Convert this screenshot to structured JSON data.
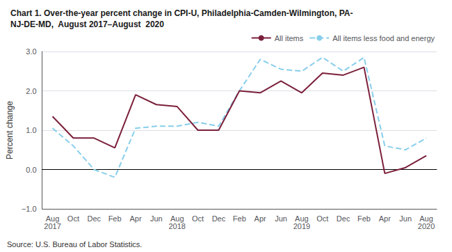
{
  "chart_data": {
    "type": "line",
    "title": "Chart 1. Over-the-year percent change in CPI-U, Philadelphia-Camden-Wilmington, PA-\nNJ-DE-MD,  August 2017–August  2020",
    "ylabel": "Percent change",
    "annotations": [
      "Source: U.S. Bureau of Labor Statistics."
    ],
    "categories": [
      "Aug\n2017",
      "Oct",
      "Dec",
      "Feb",
      "Apr",
      "Jun",
      "Aug\n2018",
      "Oct",
      "Dec",
      "Feb",
      "Apr",
      "Jun",
      "Aug\n2019",
      "Oct",
      "Dec",
      "Feb",
      "Apr",
      "Jun",
      "Aug\n2020"
    ],
    "series": [
      {
        "name": "All items",
        "color": "#7b1f3a",
        "line_style": "solid",
        "values": [
          1.35,
          0.8,
          0.8,
          0.55,
          1.9,
          1.65,
          1.6,
          1.0,
          1.0,
          2.0,
          1.95,
          2.25,
          1.95,
          2.45,
          2.4,
          2.6,
          -0.1,
          0.05,
          0.35
        ]
      },
      {
        "name": "All items less food and energy",
        "color": "#87ceeb",
        "line_style": "dashed",
        "values": [
          1.05,
          0.6,
          0.0,
          -0.2,
          1.05,
          1.1,
          1.1,
          1.2,
          1.1,
          2.0,
          2.8,
          2.55,
          2.5,
          2.85,
          2.5,
          2.85,
          0.6,
          0.5,
          0.8
        ]
      }
    ],
    "ylim": [
      -1.0,
      3.0
    ],
    "yticks": [
      {
        "value": -1.0,
        "label": "−1.0"
      },
      {
        "value": 0.0,
        "label": "0.0"
      },
      {
        "value": 1.0,
        "label": "1.0"
      },
      {
        "value": 2.0,
        "label": "2.0"
      },
      {
        "value": 3.0,
        "label": "3.0"
      }
    ],
    "grid": true,
    "legend": "upper right"
  }
}
